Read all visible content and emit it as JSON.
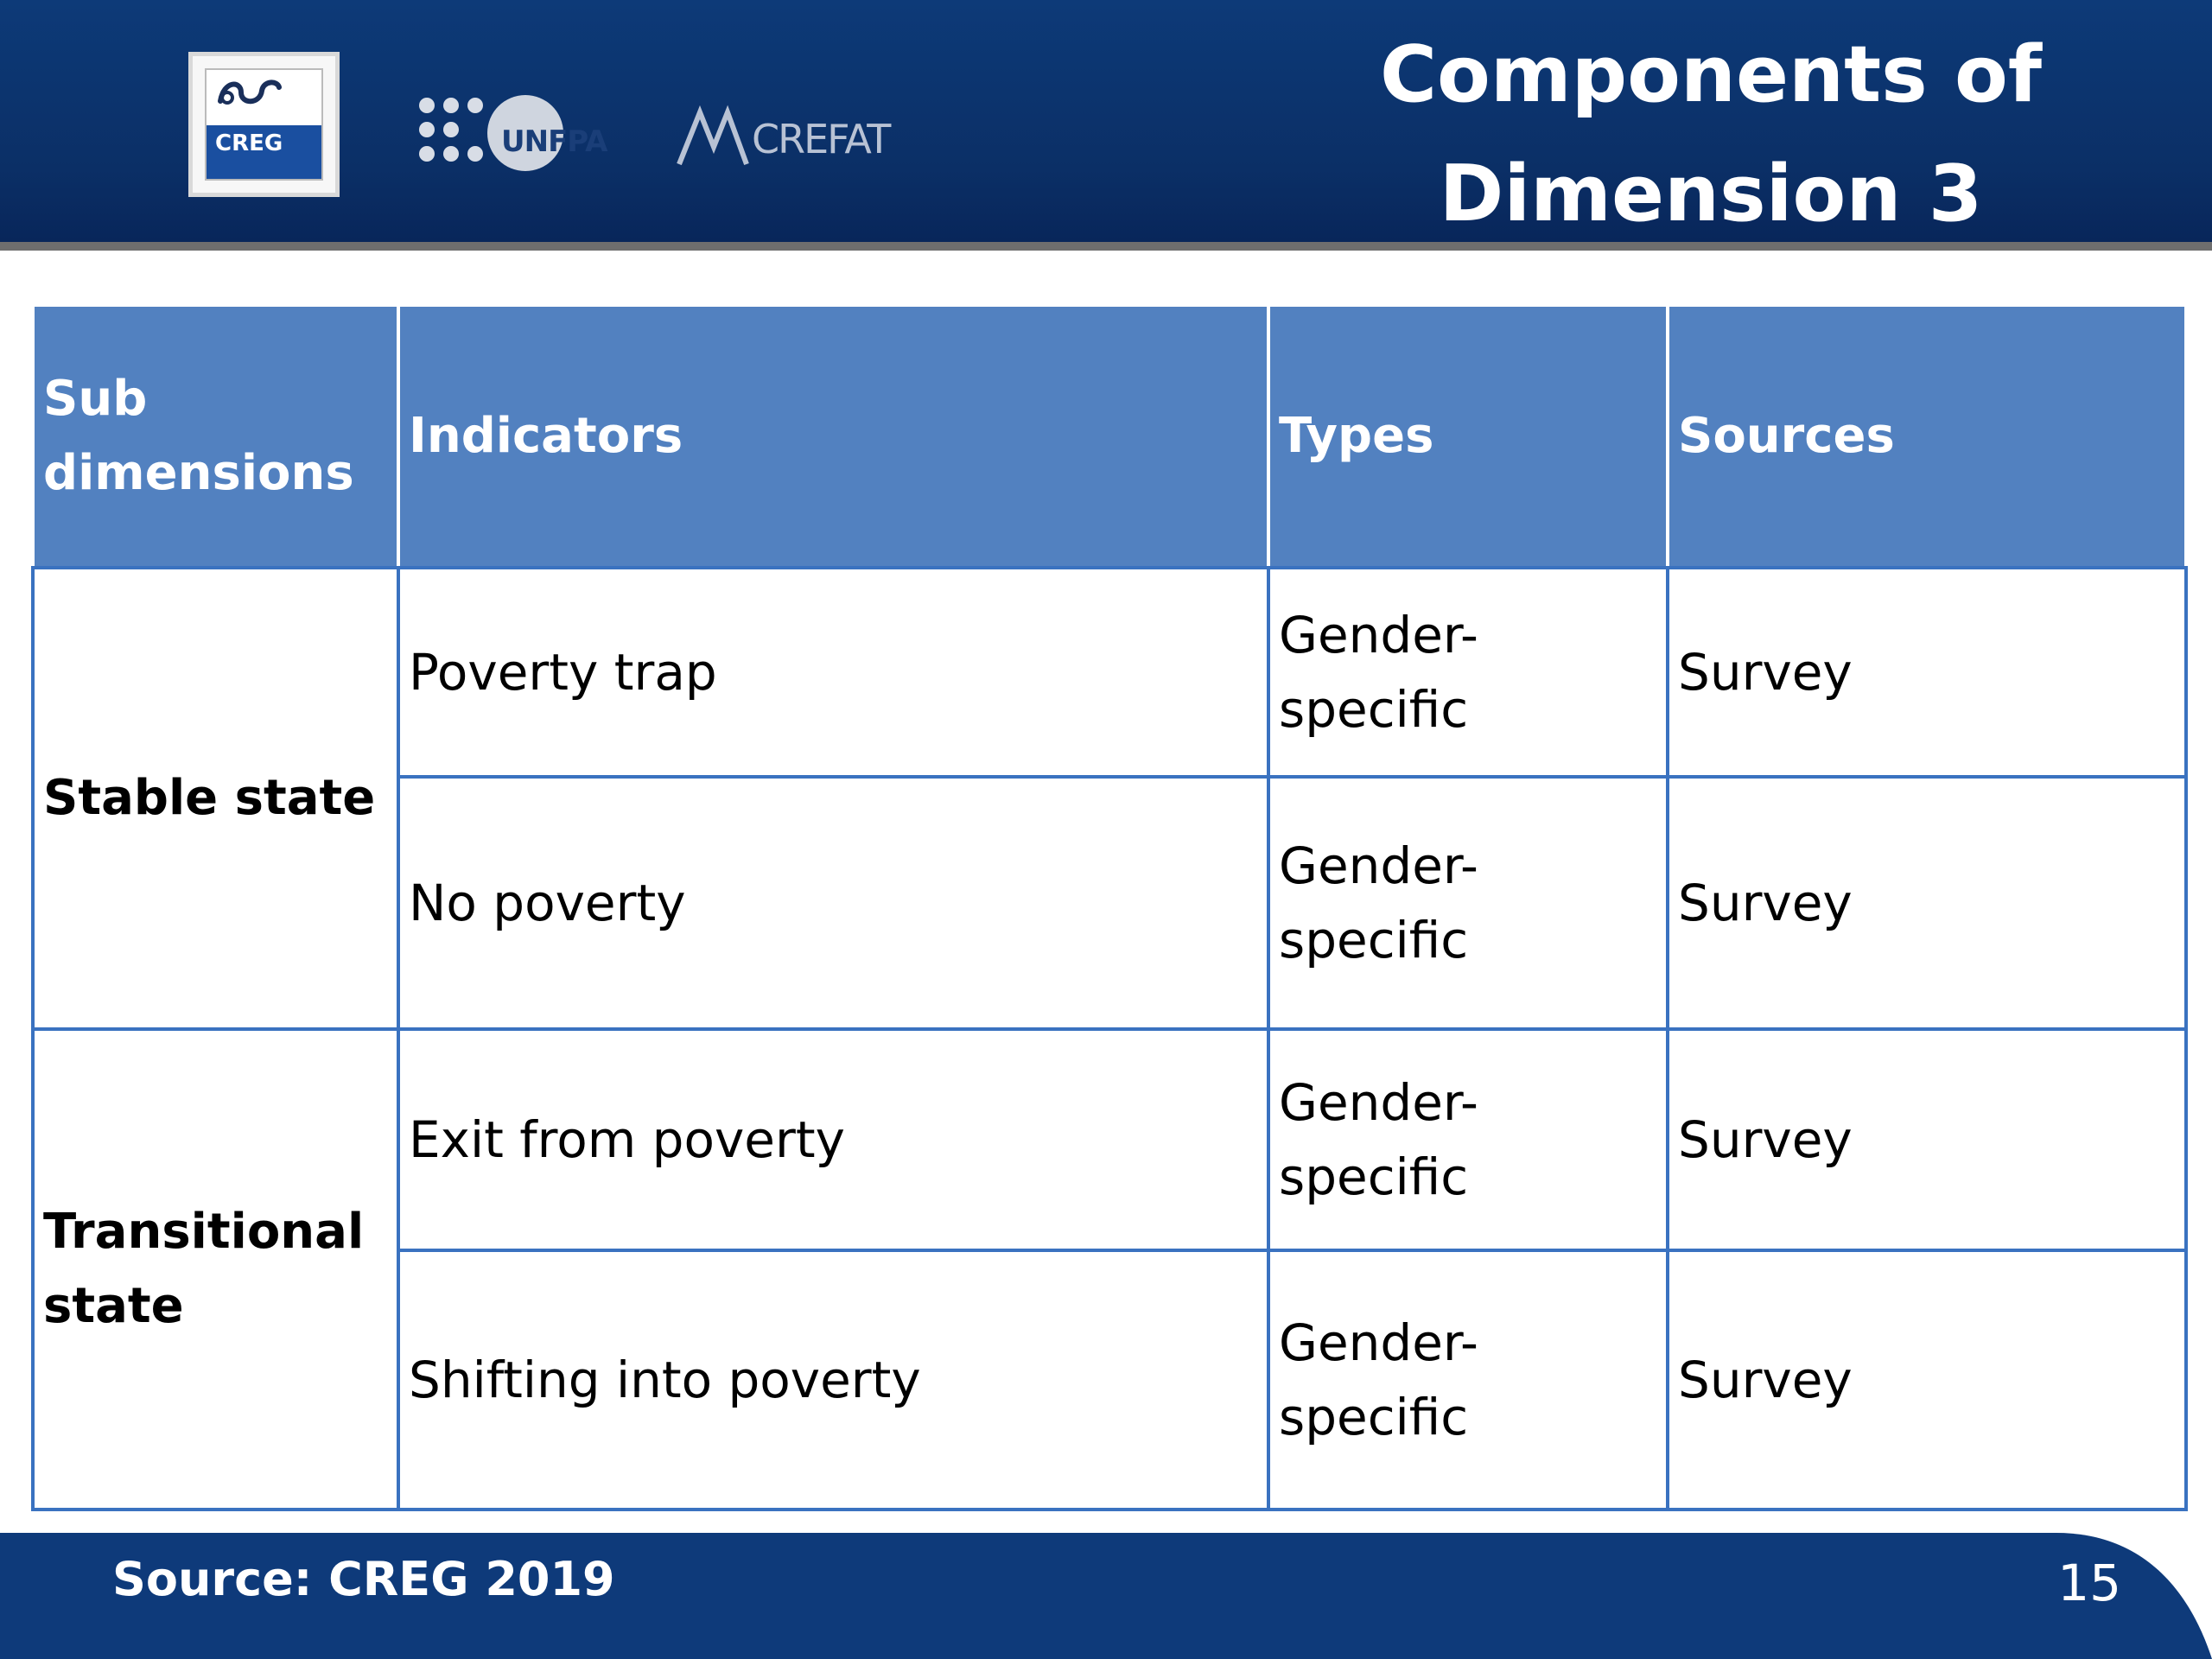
{
  "header": {
    "title_line1": "Components of",
    "title_line2": "Dimension 3",
    "logos": {
      "creg": "CREG",
      "unfpa": "UNFPA",
      "crefat": "CREFAT"
    }
  },
  "table": {
    "headers": [
      "Sub dimensions",
      "Indicators",
      "Types",
      "Sources"
    ],
    "groups": [
      {
        "sub_dimension": "Stable state",
        "rows": [
          {
            "indicator": "Poverty trap",
            "type": "Gender-specific",
            "source": "Survey"
          },
          {
            "indicator": "No poverty",
            "type": "Gender-specific",
            "source": "Survey"
          }
        ]
      },
      {
        "sub_dimension": "Transitional state",
        "rows": [
          {
            "indicator": "Exit from poverty",
            "type": "Gender-specific",
            "source": "Survey"
          },
          {
            "indicator": "Shifting into poverty",
            "type": "Gender-specific",
            "source": "Survey"
          }
        ]
      }
    ]
  },
  "footer": {
    "source": "Source: CREG 2019",
    "page_number": "15"
  },
  "colors": {
    "header_bg": "#0b2f66",
    "table_header_bg": "#5281c0",
    "table_border": "#3a72c0",
    "footer_bg": "#0e3a7a"
  }
}
